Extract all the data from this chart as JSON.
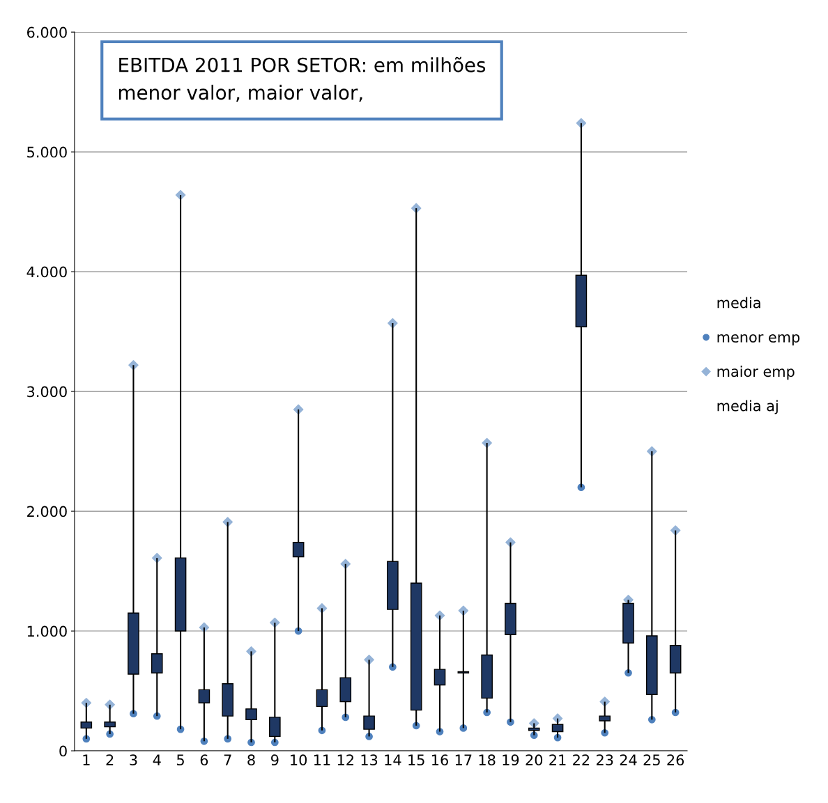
{
  "chart_data": {
    "type": "candlestick",
    "title": "EBITDA 2011 POR SETOR: em milhões\nmenor valor, maior valor,",
    "categories": [
      "1",
      "2",
      "3",
      "4",
      "5",
      "6",
      "7",
      "8",
      "9",
      "10",
      "11",
      "12",
      "13",
      "14",
      "15",
      "16",
      "17",
      "18",
      "19",
      "20",
      "21",
      "22",
      "23",
      "24",
      "25",
      "26"
    ],
    "ohlc": [
      [
        240,
        400,
        100,
        190
      ],
      [
        240,
        385,
        140,
        200
      ],
      [
        1150,
        3220,
        310,
        640
      ],
      [
        810,
        1610,
        290,
        650
      ],
      [
        1610,
        4640,
        180,
        1000
      ],
      [
        510,
        1030,
        80,
        400
      ],
      [
        560,
        1910,
        100,
        290
      ],
      [
        350,
        830,
        70,
        260
      ],
      [
        280,
        1070,
        70,
        120
      ],
      [
        1740,
        2850,
        1000,
        1620
      ],
      [
        510,
        1190,
        170,
        370
      ],
      [
        610,
        1560,
        280,
        410
      ],
      [
        290,
        760,
        120,
        180
      ],
      [
        1580,
        3570,
        700,
        1180
      ],
      [
        1400,
        4530,
        210,
        340
      ],
      [
        680,
        1130,
        160,
        550
      ],
      [
        660,
        1170,
        190,
        650
      ],
      [
        800,
        2570,
        320,
        440
      ],
      [
        1230,
        1740,
        240,
        970
      ],
      [
        190,
        230,
        130,
        170
      ],
      [
        220,
        270,
        110,
        160
      ],
      [
        3970,
        5240,
        2200,
        3540
      ],
      [
        290,
        410,
        150,
        250
      ],
      [
        1230,
        1260,
        650,
        900
      ],
      [
        960,
        2500,
        260,
        470
      ],
      [
        880,
        1840,
        320,
        650
      ]
    ],
    "series": [
      {
        "name": "menor emp",
        "type": "scatter",
        "marker": "circle",
        "color": "#4f81bd",
        "values": [
          100,
          140,
          310,
          290,
          180,
          80,
          100,
          70,
          70,
          1000,
          170,
          280,
          120,
          700,
          210,
          160,
          190,
          320,
          240,
          130,
          110,
          2200,
          150,
          650,
          260,
          320
        ]
      },
      {
        "name": "maior emp",
        "type": "scatter",
        "marker": "diamond",
        "color": "#95b3d7",
        "values": [
          400,
          385,
          3220,
          1610,
          4640,
          1030,
          1910,
          830,
          1070,
          2850,
          1190,
          1560,
          760,
          3570,
          4530,
          1130,
          1170,
          2570,
          1740,
          230,
          270,
          5240,
          410,
          1260,
          2500,
          1840
        ]
      }
    ],
    "annotations": [
      "media",
      "media aj"
    ],
    "ylim": [
      0,
      6000
    ],
    "yticks": [
      0,
      {
        "value": 1000,
        "label": "1.000"
      },
      {
        "value": 2000,
        "label": "2.000"
      },
      {
        "value": 3000,
        "label": "3.000"
      },
      {
        "value": 4000,
        "label": "4.000"
      },
      {
        "value": 5000,
        "label": "5.000"
      },
      {
        "value": 6000,
        "label": "6.000"
      }
    ],
    "grid": "y",
    "legend": "right"
  }
}
